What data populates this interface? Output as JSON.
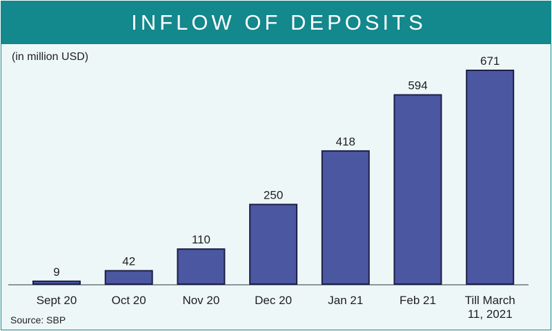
{
  "title": "INFLOW OF DEPOSITS",
  "unit_note": "(in million USD)",
  "source": "Source: SBP",
  "colors": {
    "header": "#13888d",
    "bar": "#4b57a0",
    "background": "#eef7f8"
  },
  "chart_data": {
    "type": "bar",
    "title": "INFLOW OF DEPOSITS",
    "xlabel": "",
    "ylabel": "(in million USD)",
    "categories": [
      [
        "Sept 20"
      ],
      [
        "Oct 20"
      ],
      [
        "Nov 20"
      ],
      [
        "Dec 20"
      ],
      [
        "Jan 21"
      ],
      [
        "Feb 21"
      ],
      [
        "Till March",
        "11, 2021"
      ]
    ],
    "values": [
      9,
      42,
      110,
      250,
      418,
      594,
      671
    ],
    "ylim": [
      0,
      671
    ],
    "grid": false,
    "legend": "none"
  }
}
